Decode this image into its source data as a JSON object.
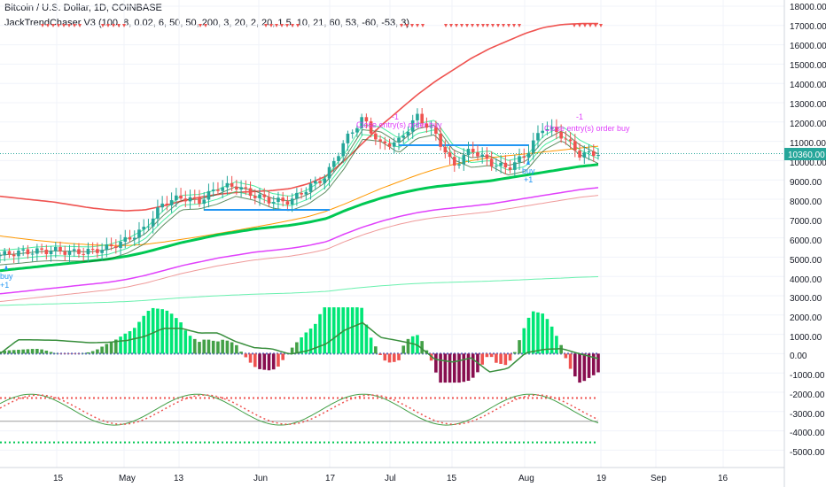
{
  "header": {
    "symbol": "Bitcoin / U.S. Dollar, 1D, COINBASE",
    "indicator": "JackTrendChaser V3 (100, 8, 0.02, 6, 50, 50, 200, 3, 20, 2, 20, 1.5, 10, 21, 60, 53, -60, -53, 3)"
  },
  "colors": {
    "up": "#26a69a",
    "down": "#ef5350",
    "ema_fast": "#00c853",
    "ema_slow": "#ef5350",
    "orange": "#ff9800",
    "magenta": "#e040fb",
    "signal": "#e040fb",
    "buy": "#2196f3"
  },
  "price_axis": {
    "ticks": [
      "18000.00",
      "17000.00",
      "16000.00",
      "15000.00",
      "14000.00",
      "13000.00",
      "12000.00",
      "11000.00",
      "10000.00",
      "9000.00",
      "8000.00",
      "7000.00",
      "6000.00",
      "5000.00",
      "4000.00",
      "3000.00",
      "2000.00",
      "1000.00",
      "0.00",
      "-1000.00",
      "-2000.00",
      "-3000.00",
      "-4000.00",
      "-5000.00"
    ],
    "current_price": "10360.00"
  },
  "time_axis": {
    "ticks": [
      "15",
      "May",
      "13",
      "Jun",
      "17",
      "Jul",
      "15",
      "Aug",
      "19",
      "Sep",
      "16"
    ]
  },
  "signals": [
    {
      "text": "buy"
    },
    {
      "text": "+1"
    },
    {
      "text": "-1"
    },
    {
      "text": "Close entry(s) order buy"
    },
    {
      "text": "buy"
    },
    {
      "text": "+1"
    },
    {
      "text": "-1"
    },
    {
      "text": "Close entry(s) order buy"
    }
  ],
  "chart_data": {
    "type": "candlestick",
    "title": "Bitcoin / U.S. Dollar, 1D, COINBASE",
    "ylim": [
      -5500,
      18500
    ],
    "x": [
      "Apr 8",
      "Apr 12",
      "Apr 16",
      "Apr 20",
      "Apr 24",
      "Apr 28",
      "May 2",
      "May 6",
      "May 10",
      "May 14",
      "May 18",
      "May 22",
      "May 26",
      "May 30",
      "Jun 3",
      "Jun 7",
      "Jun 11",
      "Jun 15",
      "Jun 19",
      "Jun 23",
      "Jun 27",
      "Jul 1",
      "Jul 5",
      "Jul 9",
      "Jul 13",
      "Jul 17",
      "Jul 21",
      "Jul 25",
      "Jul 29",
      "Aug 2",
      "Aug 6",
      "Aug 10",
      "Aug 14",
      "Aug 18"
    ],
    "close": [
      5100,
      5250,
      5300,
      5350,
      5250,
      5300,
      5500,
      5900,
      6500,
      7800,
      8100,
      7900,
      8600,
      8700,
      8200,
      7900,
      7900,
      8600,
      9200,
      11000,
      12200,
      10800,
      11000,
      12300,
      11400,
      9700,
      10600,
      9900,
      9600,
      10300,
      11800,
      11300,
      10300,
      10400
    ],
    "series": [
      {
        "name": "",
        "values": [
          8150,
          8050,
          7950,
          7850,
          7700,
          7550,
          7450,
          7400,
          7450,
          7650,
          7900,
          8100,
          8250,
          8350,
          8400,
          8450,
          8550,
          8800,
          9200,
          10000,
          10900,
          11800,
          12600,
          13400,
          14100,
          14700,
          15300,
          15800,
          16200,
          16600,
          16900,
          17050,
          17100,
          17100
        ]
      },
      {
        "name": "",
        "values": [
          4300,
          4400,
          4500,
          4600,
          4700,
          4800,
          4900,
          5050,
          5250,
          5500,
          5750,
          5950,
          6150,
          6300,
          6450,
          6550,
          6650,
          6800,
          7000,
          7400,
          7750,
          8050,
          8300,
          8500,
          8650,
          8750,
          8850,
          8950,
          9100,
          9250,
          9400,
          9550,
          9700,
          9800
        ]
      },
      {
        "name": "",
        "values": [
          6100,
          5980,
          5870,
          5780,
          5700,
          5640,
          5600,
          5600,
          5660,
          5780,
          5920,
          6060,
          6220,
          6380,
          6550,
          6720,
          6900,
          7100,
          7380,
          7750,
          8150,
          8550,
          8900,
          9250,
          9550,
          9800,
          10000,
          10150,
          10250,
          10350,
          10450,
          10550,
          10650,
          10750
        ]
      }
    ]
  }
}
